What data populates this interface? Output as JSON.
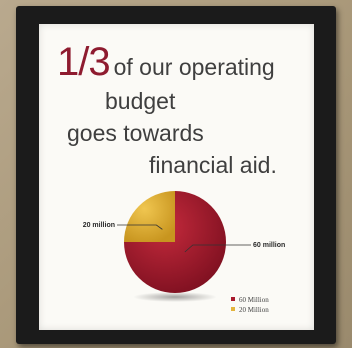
{
  "poster": {
    "big_fraction": "1/3",
    "line1": "of our operating",
    "line2": "budget",
    "line3": "goes towards",
    "line4": "financial aid."
  },
  "chart_data": {
    "type": "pie",
    "slices": [
      {
        "label": "20 Million",
        "value": 20,
        "color": "#e3b43c",
        "callout": "20 million"
      },
      {
        "label": "60 Million",
        "value": 60,
        "color": "#a8192c",
        "callout": "60 million"
      }
    ],
    "legend_position": "bottom-right"
  },
  "colors": {
    "accent": "#8e1b2f",
    "text": "#3f3f3f",
    "poster_bg": "#fbfaf6",
    "frame": "#1b1b1b"
  }
}
